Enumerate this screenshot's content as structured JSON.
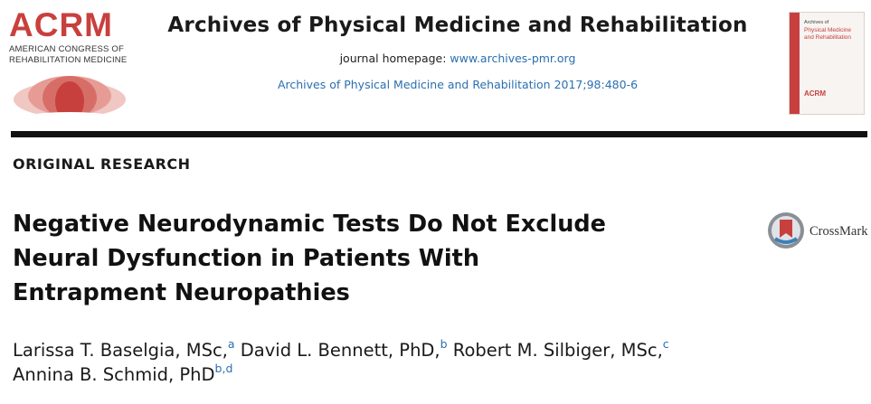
{
  "publisher_logo": {
    "wordmark": "ACRM",
    "subtitle_line1": "AMERICAN CONGRESS OF",
    "subtitle_line2": "REHABILITATION MEDICINE",
    "color": "#c8403e"
  },
  "header": {
    "journal_title": "Archives of Physical Medicine and Rehabilitation",
    "homepage_label": "journal homepage:",
    "homepage_url": "www.archives-pmr.org",
    "citation": "Archives of Physical Medicine and Rehabilitation 2017;98:480-6"
  },
  "cover": {
    "line1": "Archives of",
    "title_line1": "Physical Medicine",
    "title_line2": "and Rehabilitation",
    "logo": "ACRM"
  },
  "article": {
    "section": "ORIGINAL RESEARCH",
    "title_line1": "Negative Neurodynamic Tests Do Not Exclude",
    "title_line2": "Neural Dysfunction in Patients With",
    "title_line3": "Entrapment Neuropathies",
    "crossmark_label": "CrossMark",
    "authors": [
      {
        "name": "Larissa T. Baselgia, MSc,",
        "affil": "a"
      },
      {
        "name": "David L. Bennett, PhD,",
        "affil": "b"
      },
      {
        "name": "Robert M. Silbiger, MSc,",
        "affil": "c"
      },
      {
        "name": "Annina B. Schmid, PhD",
        "affil": "b,d"
      }
    ]
  },
  "colors": {
    "link": "#2a6fb0",
    "brand": "#c8403e",
    "rule": "#111111"
  }
}
